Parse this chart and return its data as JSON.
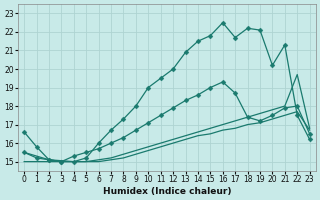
{
  "xlabel": "Humidex (Indice chaleur)",
  "xlim": [
    -0.5,
    23.5
  ],
  "ylim": [
    14.5,
    23.5
  ],
  "xticks": [
    0,
    1,
    2,
    3,
    4,
    5,
    6,
    7,
    8,
    9,
    10,
    11,
    12,
    13,
    14,
    15,
    16,
    17,
    18,
    19,
    20,
    21,
    22,
    23
  ],
  "yticks": [
    15,
    16,
    17,
    18,
    19,
    20,
    21,
    22,
    23
  ],
  "bg_color": "#c8eae8",
  "grid_color": "#aed4d2",
  "line_color": "#1a7a6e",
  "line1_x": [
    0,
    1,
    2,
    3,
    4,
    5,
    6,
    7,
    8,
    9,
    10,
    11,
    12,
    13,
    14,
    15,
    16,
    17,
    18,
    19,
    20,
    21,
    22,
    23
  ],
  "line1_y": [
    16.6,
    15.8,
    15.1,
    15.0,
    15.0,
    15.2,
    16.0,
    16.7,
    17.3,
    18.0,
    19.0,
    19.5,
    20.0,
    20.9,
    21.5,
    21.8,
    22.5,
    21.7,
    22.2,
    22.1,
    20.2,
    21.3,
    17.5,
    16.2
  ],
  "line2_x": [
    0,
    1,
    2,
    3,
    4,
    5,
    6,
    7,
    8,
    9,
    10,
    11,
    12,
    13,
    14,
    15,
    16,
    17,
    18,
    19,
    20,
    21,
    22,
    23
  ],
  "line2_y": [
    15.5,
    15.2,
    15.1,
    15.0,
    15.3,
    15.5,
    15.7,
    16.0,
    16.3,
    16.7,
    17.1,
    17.5,
    17.9,
    18.3,
    18.6,
    19.0,
    19.3,
    18.7,
    17.4,
    17.2,
    17.5,
    17.9,
    18.0,
    16.5
  ],
  "line3_x": [
    0,
    1,
    2,
    3,
    4,
    5,
    6,
    7,
    8,
    9,
    10,
    11,
    12,
    13,
    14,
    15,
    16,
    17,
    18,
    19,
    20,
    21,
    22,
    23
  ],
  "line3_y": [
    15.0,
    15.0,
    15.0,
    15.0,
    15.0,
    15.0,
    15.1,
    15.2,
    15.4,
    15.6,
    15.8,
    16.0,
    16.2,
    16.4,
    16.6,
    16.8,
    17.0,
    17.2,
    17.4,
    17.6,
    17.8,
    18.0,
    19.7,
    16.8
  ],
  "line4_x": [
    0,
    2,
    4,
    5,
    6,
    7,
    8,
    9,
    10,
    11,
    12,
    13,
    14,
    15,
    16,
    17,
    18,
    19,
    20,
    21,
    22,
    23
  ],
  "line4_y": [
    15.5,
    15.1,
    15.0,
    15.0,
    15.0,
    15.1,
    15.2,
    15.4,
    15.6,
    15.8,
    16.0,
    16.2,
    16.4,
    16.5,
    16.7,
    16.8,
    17.0,
    17.1,
    17.3,
    17.5,
    17.7,
    16.7
  ]
}
